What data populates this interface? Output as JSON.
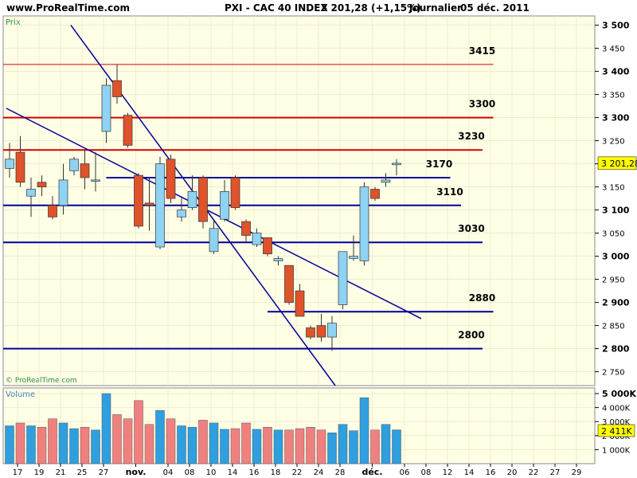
{
  "header": {
    "site": "www.ProRealTime.com",
    "instrument": "PXI - CAC 40 INDEX",
    "quote": "3 201,28 (+1,15%)",
    "period": "Journalier",
    "date": "05 déc. 2011"
  },
  "price_panel": {
    "label": "Prix",
    "watermark": "© ProRealTime.com",
    "last_price_label": "3 201,28",
    "y_ticks": [
      {
        "value": 2750,
        "label": "2 750",
        "major": false
      },
      {
        "value": 2800,
        "label": "2 800",
        "major": true
      },
      {
        "value": 2850,
        "label": "2 850",
        "major": false
      },
      {
        "value": 2900,
        "label": "2 900",
        "major": true
      },
      {
        "value": 2950,
        "label": "2 950",
        "major": false
      },
      {
        "value": 3000,
        "label": "3 000",
        "major": true
      },
      {
        "value": 3050,
        "label": "3 050",
        "major": false
      },
      {
        "value": 3100,
        "label": "3 100",
        "major": true
      },
      {
        "value": 3150,
        "label": "3 150",
        "major": false
      },
      {
        "value": 3200,
        "label": "3 200",
        "major": true
      },
      {
        "value": 3250,
        "label": "3 250",
        "major": false
      },
      {
        "value": 3300,
        "label": "3 300",
        "major": true
      },
      {
        "value": 3350,
        "label": "3 350",
        "major": false
      },
      {
        "value": 3400,
        "label": "3 400",
        "major": true
      },
      {
        "value": 3450,
        "label": "3 450",
        "major": false
      },
      {
        "value": 3500,
        "label": "3 500",
        "major": true
      }
    ]
  },
  "volume_panel": {
    "label": "Volume",
    "last_volume_label": "2 411K",
    "y_ticks": [
      {
        "value": 1000,
        "label": "1 000K",
        "major": false
      },
      {
        "value": 2000,
        "label": "2 000K",
        "major": false
      },
      {
        "value": 3000,
        "label": "3 000K",
        "major": false
      },
      {
        "value": 4000,
        "label": "4 000K",
        "major": false
      },
      {
        "value": 5000,
        "label": "5 000K",
        "major": true
      }
    ]
  },
  "x_axis": {
    "ticks": [
      {
        "slot": 0,
        "label": "17",
        "bold": false
      },
      {
        "slot": 2,
        "label": "19",
        "bold": false
      },
      {
        "slot": 4,
        "label": "21",
        "bold": false
      },
      {
        "slot": 6,
        "label": "25",
        "bold": false
      },
      {
        "slot": 8,
        "label": "27",
        "bold": false
      },
      {
        "slot": 11,
        "label": "nov.",
        "bold": true
      },
      {
        "slot": 14,
        "label": "04",
        "bold": false
      },
      {
        "slot": 16,
        "label": "08",
        "bold": false
      },
      {
        "slot": 18,
        "label": "10",
        "bold": false
      },
      {
        "slot": 20,
        "label": "14",
        "bold": false
      },
      {
        "slot": 22,
        "label": "16",
        "bold": false
      },
      {
        "slot": 24,
        "label": "18",
        "bold": false
      },
      {
        "slot": 26,
        "label": "22",
        "bold": false
      },
      {
        "slot": 28,
        "label": "24",
        "bold": false
      },
      {
        "slot": 30,
        "label": "28",
        "bold": false
      },
      {
        "slot": 33,
        "label": "déc.",
        "bold": true
      },
      {
        "slot": 36,
        "label": "06",
        "bold": false
      },
      {
        "slot": 38,
        "label": "08",
        "bold": false
      },
      {
        "slot": 40,
        "label": "12",
        "bold": false
      },
      {
        "slot": 42,
        "label": "14",
        "bold": false
      },
      {
        "slot": 44,
        "label": "16",
        "bold": false
      },
      {
        "slot": 46,
        "label": "20",
        "bold": false
      },
      {
        "slot": 48,
        "label": "22",
        "bold": false
      },
      {
        "slot": 50,
        "label": "27",
        "bold": false
      },
      {
        "slot": 52,
        "label": "29",
        "bold": false
      }
    ]
  },
  "colors": {
    "up": "#8fd3f4",
    "down": "#e0522a",
    "vol_up": "#2f9fe0",
    "vol_down": "#f08080",
    "support": "#000099",
    "resistance": "#d40000",
    "channel": "#000099",
    "panel_bg": "#ffffe6",
    "last_price_bg": "#ffff00"
  },
  "chart_data": {
    "type": "candlestick",
    "title": "PXI - CAC 40 INDEX",
    "period": "Journalier",
    "ylim": [
      2720,
      3520
    ],
    "volume_ylim": [
      0,
      5400
    ],
    "candles": [
      {
        "slot": 0,
        "open": 3190,
        "high": 3245,
        "low": 3170,
        "close": 3210,
        "volume": 2700
      },
      {
        "slot": 1,
        "open": 3225,
        "high": 3260,
        "low": 3150,
        "close": 3160,
        "volume": 2900
      },
      {
        "slot": 2,
        "open": 3130,
        "high": 3170,
        "low": 3085,
        "close": 3145,
        "volume": 2700
      },
      {
        "slot": 3,
        "open": 3160,
        "high": 3175,
        "low": 3130,
        "close": 3150,
        "volume": 2600
      },
      {
        "slot": 4,
        "open": 3110,
        "high": 3130,
        "low": 3080,
        "close": 3085,
        "volume": 3200
      },
      {
        "slot": 5,
        "open": 3110,
        "high": 3200,
        "low": 3090,
        "close": 3165,
        "volume": 2900
      },
      {
        "slot": 6,
        "open": 3185,
        "high": 3215,
        "low": 3175,
        "close": 3210,
        "volume": 2500
      },
      {
        "slot": 7,
        "open": 3200,
        "high": 3230,
        "low": 3145,
        "close": 3170,
        "volume": 2600
      },
      {
        "slot": 8,
        "open": 3165,
        "high": 3225,
        "low": 3140,
        "close": 3165,
        "volume": 2400
      },
      {
        "slot": 9,
        "open": 3270,
        "high": 3385,
        "low": 3245,
        "close": 3370,
        "volume": 5000
      },
      {
        "slot": 10,
        "open": 3380,
        "high": 3415,
        "low": 3330,
        "close": 3345,
        "volume": 3500
      },
      {
        "slot": 11,
        "open": 3305,
        "high": 3310,
        "low": 3235,
        "close": 3240,
        "volume": 3200
      },
      {
        "slot": 12,
        "open": 3175,
        "high": 3180,
        "low": 3060,
        "close": 3065,
        "volume": 4500
      },
      {
        "slot": 13,
        "open": 3115,
        "high": 3170,
        "low": 3055,
        "close": 3110,
        "volume": 2800
      },
      {
        "slot": 14,
        "open": 3020,
        "high": 3215,
        "low": 3015,
        "close": 3200,
        "volume": 3800
      },
      {
        "slot": 15,
        "open": 3210,
        "high": 3220,
        "low": 3115,
        "close": 3125,
        "volume": 3200
      },
      {
        "slot": 16,
        "open": 3085,
        "high": 3130,
        "low": 3075,
        "close": 3100,
        "volume": 2700
      },
      {
        "slot": 17,
        "open": 3105,
        "high": 3175,
        "low": 3100,
        "close": 3140,
        "volume": 2600
      },
      {
        "slot": 18,
        "open": 3170,
        "high": 3175,
        "low": 3060,
        "close": 3075,
        "volume": 3100
      },
      {
        "slot": 19,
        "open": 3010,
        "high": 3080,
        "low": 3005,
        "close": 3060,
        "volume": 2900
      },
      {
        "slot": 20,
        "open": 3080,
        "high": 3165,
        "low": 3075,
        "close": 3140,
        "volume": 2450
      },
      {
        "slot": 21,
        "open": 3170,
        "high": 3175,
        "low": 3100,
        "close": 3105,
        "volume": 2500
      },
      {
        "slot": 22,
        "open": 3075,
        "high": 3080,
        "low": 3030,
        "close": 3045,
        "volume": 2900
      },
      {
        "slot": 23,
        "open": 3025,
        "high": 3060,
        "low": 3020,
        "close": 3050,
        "volume": 2450
      },
      {
        "slot": 24,
        "open": 3040,
        "high": 3040,
        "low": 3000,
        "close": 3005,
        "volume": 2600
      },
      {
        "slot": 25,
        "open": 2990,
        "high": 3000,
        "low": 2980,
        "close": 2995,
        "volume": 2400
      },
      {
        "slot": 26,
        "open": 2980,
        "high": 2980,
        "low": 2895,
        "close": 2900,
        "volume": 2400
      },
      {
        "slot": 27,
        "open": 2925,
        "high": 2940,
        "low": 2870,
        "close": 2870,
        "volume": 2500
      },
      {
        "slot": 28,
        "open": 2845,
        "high": 2850,
        "low": 2820,
        "close": 2825,
        "volume": 2600
      },
      {
        "slot": 29,
        "open": 2850,
        "high": 2875,
        "low": 2815,
        "close": 2825,
        "volume": 2400
      },
      {
        "slot": 30,
        "open": 2825,
        "high": 2870,
        "low": 2795,
        "close": 2855,
        "volume": 2200
      },
      {
        "slot": 31,
        "open": 2895,
        "high": 3010,
        "low": 2885,
        "close": 3010,
        "volume": 2800
      },
      {
        "slot": 32,
        "open": 2995,
        "high": 3045,
        "low": 2990,
        "close": 3000,
        "volume": 2350
      },
      {
        "slot": 33,
        "open": 2990,
        "high": 3160,
        "low": 2980,
        "close": 3150,
        "volume": 4700
      },
      {
        "slot": 34,
        "open": 3145,
        "high": 3150,
        "low": 3120,
        "close": 3125,
        "volume": 2400
      },
      {
        "slot": 35,
        "open": 3160,
        "high": 3180,
        "low": 3150,
        "close": 3165,
        "volume": 2800
      },
      {
        "slot": 36,
        "open": 3198,
        "high": 3210,
        "low": 3175,
        "close": 3201.28,
        "volume": 2411
      }
    ],
    "levels": [
      {
        "name": "3415",
        "value": 3415,
        "color": "resistance",
        "x_start_slot": -1,
        "x_end_slot": 45,
        "width": 1
      },
      {
        "name": "3300",
        "value": 3300,
        "color": "resistance",
        "x_start_slot": -1,
        "x_end_slot": 45,
        "width": 2
      },
      {
        "name": "3230",
        "value": 3230,
        "color": "resistance",
        "x_start_slot": -1,
        "x_end_slot": 44,
        "width": 2
      },
      {
        "name": "3170",
        "value": 3170,
        "color": "support",
        "x_start_slot": 9,
        "x_end_slot": 41,
        "width": 2
      },
      {
        "name": "3110",
        "value": 3110,
        "color": "support",
        "x_start_slot": -1,
        "x_end_slot": 42,
        "width": 2
      },
      {
        "name": "3030",
        "value": 3030,
        "color": "support",
        "x_start_slot": -1,
        "x_end_slot": 44,
        "width": 2
      },
      {
        "name": "2880",
        "value": 2880,
        "color": "support",
        "x_start_slot": 24,
        "x_end_slot": 45,
        "width": 2
      },
      {
        "name": "2800",
        "value": 2800,
        "color": "support",
        "x_start_slot": -1,
        "x_end_slot": 44,
        "width": 2
      }
    ],
    "trendlines": [
      {
        "from_slot": 5.7,
        "from_value": 3500,
        "to_slot": 30.3,
        "to_value": 2720
      },
      {
        "from_slot": -0.3,
        "from_value": 3320,
        "to_slot": 38.3,
        "to_value": 2865
      }
    ]
  }
}
